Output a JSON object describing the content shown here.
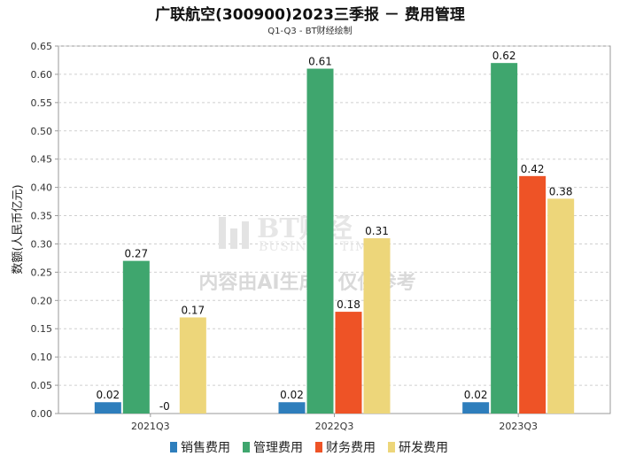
{
  "chart_data": {
    "type": "bar",
    "title": "广联航空(300900)2023三季报 － 费用管理",
    "subtitle": "Q1-Q3 - BT财经绘制",
    "ylabel": "数额(人民币亿元)",
    "xlabel": "",
    "ylim": [
      0,
      0.65
    ],
    "ytick_step": 0.05,
    "yticks": [
      "0.00",
      "0.05",
      "0.10",
      "0.15",
      "0.20",
      "0.25",
      "0.30",
      "0.35",
      "0.40",
      "0.45",
      "0.50",
      "0.55",
      "0.60",
      "0.65"
    ],
    "grid": true,
    "legend_position": "bottom",
    "categories": [
      "2021Q3",
      "2022Q3",
      "2023Q3"
    ],
    "series": [
      {
        "name": "销售费用",
        "color": "#2e7ebc",
        "values": [
          0.02,
          0.02,
          0.02
        ],
        "labels": [
          "0.02",
          "0.02",
          "0.02"
        ]
      },
      {
        "name": "管理费用",
        "color": "#3fa66e",
        "values": [
          0.27,
          0.61,
          0.62
        ],
        "labels": [
          "0.27",
          "0.61",
          "0.62"
        ]
      },
      {
        "name": "财务费用",
        "color": "#ee5326",
        "values": [
          0,
          0.18,
          0.42
        ],
        "labels": [
          "-0",
          "0.18",
          "0.42"
        ]
      },
      {
        "name": "研发费用",
        "color": "#edd67a",
        "values": [
          0.17,
          0.31,
          0.38
        ],
        "labels": [
          "0.17",
          "0.31",
          "0.38"
        ]
      }
    ]
  },
  "watermark": {
    "logo_text": "BT财经",
    "logo_sub": "BUSINESS TIMES",
    "notice": "内容由AI生成，仅供参考"
  }
}
